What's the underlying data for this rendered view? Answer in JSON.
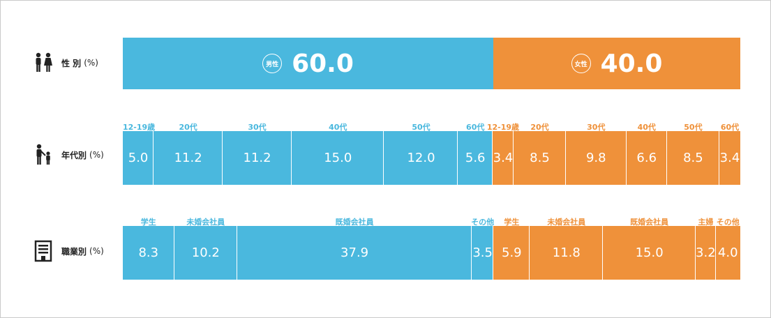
{
  "chart_data": [
    {
      "type": "bar",
      "label": "性 別",
      "unit": "(%)",
      "segments": [
        {
          "group": "male",
          "badge": "男性",
          "value": 60.0
        },
        {
          "group": "female",
          "badge": "女性",
          "value": 40.0
        }
      ]
    },
    {
      "type": "bar",
      "label": "年代別",
      "unit": "(%)",
      "segments": [
        {
          "group": "male",
          "category": "12-19歳",
          "value": 5.0
        },
        {
          "group": "male",
          "category": "20代",
          "value": 11.2
        },
        {
          "group": "male",
          "category": "30代",
          "value": 11.2
        },
        {
          "group": "male",
          "category": "40代",
          "value": 15.0
        },
        {
          "group": "male",
          "category": "50代",
          "value": 12.0
        },
        {
          "group": "male",
          "category": "60代",
          "value": 5.6
        },
        {
          "group": "female",
          "category": "12-19歳",
          "value": 3.4
        },
        {
          "group": "female",
          "category": "20代",
          "value": 8.5
        },
        {
          "group": "female",
          "category": "30代",
          "value": 9.8
        },
        {
          "group": "female",
          "category": "40代",
          "value": 6.6
        },
        {
          "group": "female",
          "category": "50代",
          "value": 8.5
        },
        {
          "group": "female",
          "category": "60代",
          "value": 3.4
        }
      ]
    },
    {
      "type": "bar",
      "label": "職業別",
      "unit": "(%)",
      "segments": [
        {
          "group": "male",
          "category": "学生",
          "value": 8.3
        },
        {
          "group": "male",
          "category": "未婚会社員",
          "value": 10.2
        },
        {
          "group": "male",
          "category": "既婚会社員",
          "value": 37.9
        },
        {
          "group": "male",
          "category": "その他",
          "value": 3.5
        },
        {
          "group": "female",
          "category": "学生",
          "value": 5.9
        },
        {
          "group": "female",
          "category": "未婚会社員",
          "value": 11.8
        },
        {
          "group": "female",
          "category": "既婚会社員",
          "value": 15.0
        },
        {
          "group": "female",
          "category": "主婦",
          "value": 3.2
        },
        {
          "group": "female",
          "category": "その他",
          "value": 4.0
        }
      ]
    }
  ],
  "colors": {
    "male": "#4ab8de",
    "female": "#ef913a"
  },
  "icons": [
    "couple-icon",
    "parent-child-icon",
    "building-icon"
  ]
}
